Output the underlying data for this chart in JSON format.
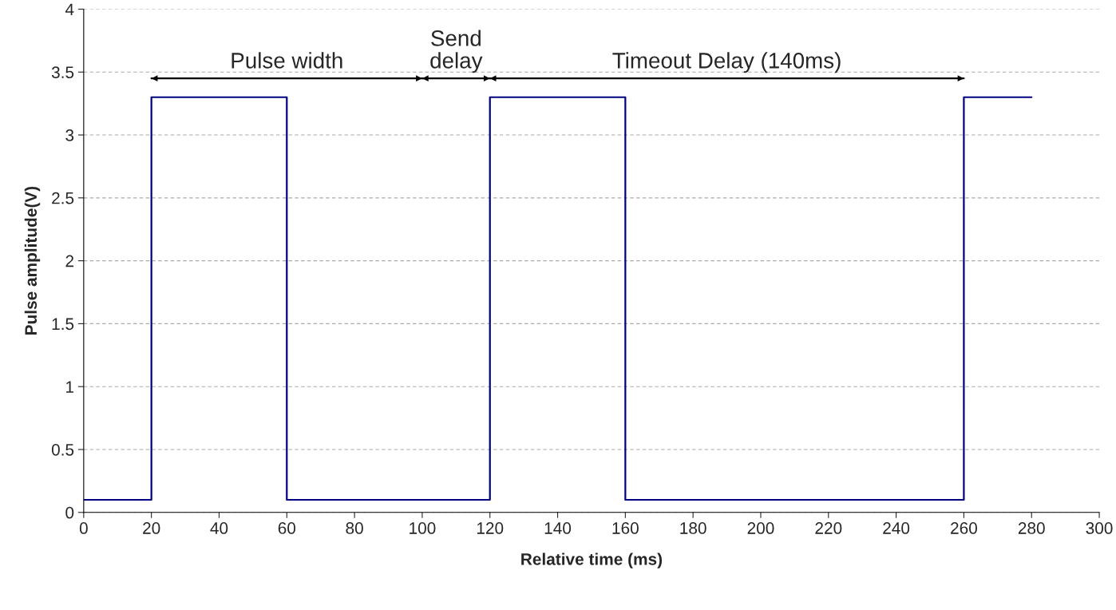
{
  "chart_data": {
    "type": "line",
    "xlabel": "Relative time (ms)",
    "ylabel": "Pulse amplitude(V)",
    "x": [
      0,
      20,
      20,
      60,
      60,
      100,
      120,
      120,
      160,
      160,
      220,
      260,
      260,
      280
    ],
    "series": [
      {
        "color": "#000080",
        "values": [
          0.1,
          0.1,
          3.3,
          3.3,
          0.1,
          0.1,
          0.1,
          3.3,
          3.3,
          0.1,
          0.1,
          0.1,
          3.3,
          3.3
        ]
      },
      {
        "color": "#000000",
        "x": [
          20,
          100
        ],
        "values": [
          3.45,
          3.45
        ],
        "marker": "triangle"
      },
      {
        "color": "#000000",
        "x": [
          100,
          120
        ],
        "values": [
          3.45,
          3.45
        ],
        "marker": "triangle"
      },
      {
        "color": "#000000",
        "x": [
          120,
          260
        ],
        "values": [
          3.45,
          3.45
        ],
        "marker": "triangle"
      }
    ],
    "xlim": [
      0,
      300
    ],
    "xticks": [
      0,
      20,
      40,
      60,
      80,
      100,
      120,
      140,
      160,
      180,
      200,
      220,
      240,
      260,
      280,
      300
    ],
    "ylim": [
      0,
      4
    ],
    "yticks": [
      0,
      0.5,
      1,
      1.5,
      2,
      2.5,
      3,
      3.5,
      4
    ],
    "grid": "y",
    "legend": false,
    "marker": "none",
    "line_style": "solid",
    "annotations": [
      {
        "text": "Pulse width",
        "x": 60,
        "y": 3.45
      },
      {
        "text": "Send\ndelay",
        "x": 110,
        "y": 3.45
      },
      {
        "text": "Timeout Delay (140ms)",
        "x": 190,
        "y": 3.45
      }
    ]
  }
}
